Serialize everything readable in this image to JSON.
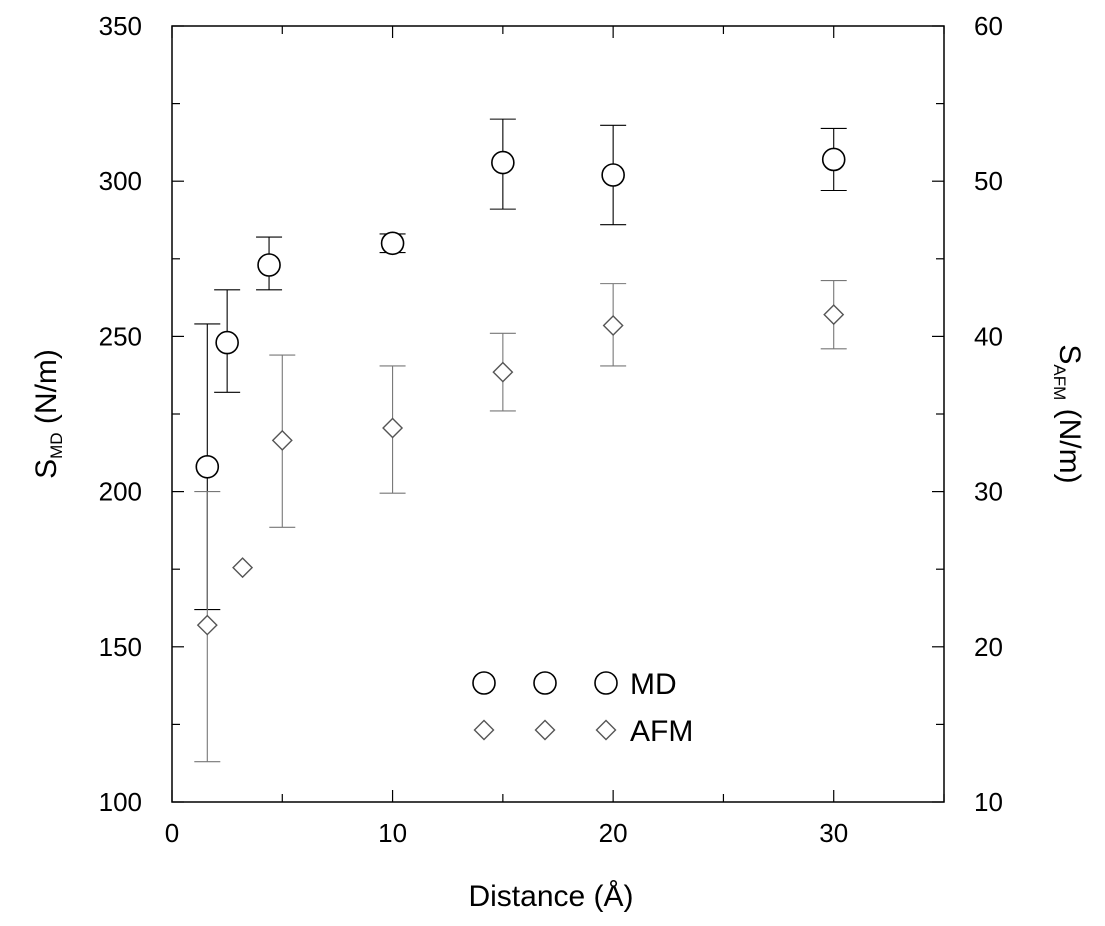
{
  "chart_data": {
    "type": "scatter",
    "xlabel": "Distance (Å)",
    "ylabel": {
      "main": "S",
      "sub": "MD",
      "unit": " (N/m)"
    },
    "y2label": {
      "main": "S",
      "sub": "AFM",
      "unit": " (N/m)"
    },
    "xlim": [
      0,
      35
    ],
    "ylim": [
      100,
      350
    ],
    "y2lim": [
      10,
      60
    ],
    "xticks": [
      "0",
      "10",
      "20",
      "30"
    ],
    "yticks": [
      "100",
      "150",
      "200",
      "250",
      "300",
      "350"
    ],
    "y2ticks": [
      "10",
      "20",
      "30",
      "40",
      "50",
      "60"
    ],
    "grid": false,
    "legend_position": "bottom-center",
    "series": [
      {
        "name": "MD",
        "axis": "left",
        "marker": "circle",
        "color": "#000000",
        "points": [
          {
            "x": 1.6,
            "y": 208,
            "err_low": 162,
            "err_high": 254
          },
          {
            "x": 2.5,
            "y": 248,
            "err_low": 232,
            "err_high": 265
          },
          {
            "x": 4.4,
            "y": 273,
            "err_low": 265,
            "err_high": 282
          },
          {
            "x": 10,
            "y": 280,
            "err_low": 277,
            "err_high": 283
          },
          {
            "x": 15,
            "y": 306,
            "err_low": 291,
            "err_high": 320
          },
          {
            "x": 20,
            "y": 302,
            "err_low": 286,
            "err_high": 318
          },
          {
            "x": 30,
            "y": 307,
            "err_low": 297,
            "err_high": 317
          }
        ]
      },
      {
        "name": "AFM",
        "axis": "right",
        "marker": "diamond",
        "color": "#555555",
        "points": [
          {
            "x": 1.6,
            "y": 21.4,
            "err_low": 12.6,
            "err_high": 30.0
          },
          {
            "x": 3.2,
            "y": 25.1,
            "err_low": null,
            "err_high": null
          },
          {
            "x": 5,
            "y": 33.3,
            "err_low": 27.7,
            "err_high": 38.8
          },
          {
            "x": 10,
            "y": 34.1,
            "err_low": 29.9,
            "err_high": 38.1
          },
          {
            "x": 15,
            "y": 37.7,
            "err_low": 35.2,
            "err_high": 40.2
          },
          {
            "x": 20,
            "y": 40.7,
            "err_low": 38.1,
            "err_high": 43.4
          },
          {
            "x": 30,
            "y": 41.4,
            "err_low": 39.2,
            "err_high": 43.6
          }
        ]
      }
    ]
  }
}
